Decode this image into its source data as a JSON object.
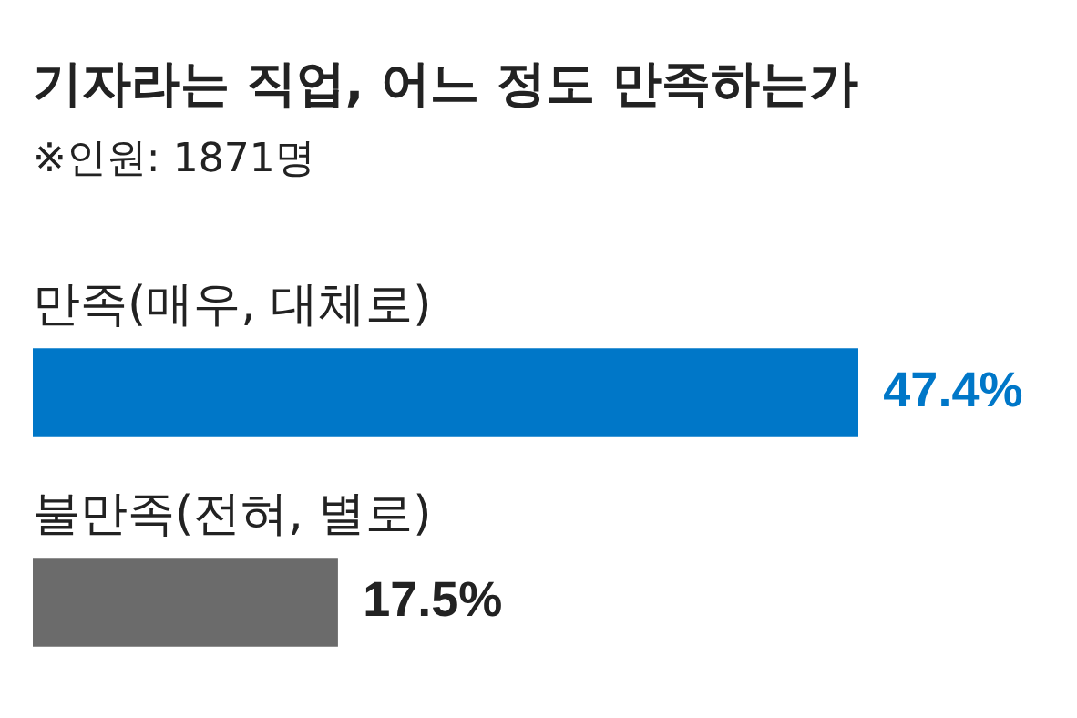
{
  "chart_data": {
    "type": "bar",
    "orientation": "horizontal",
    "title": "기자라는 직업, 어느 정도 만족하는가",
    "subtitle": "※인원: 1871명",
    "categories": [
      "만족(매우, 대체로)",
      "불만족(전혀, 별로)"
    ],
    "values": [
      47.4,
      17.5
    ],
    "colors": [
      "#0077c8",
      "#6b6b6b"
    ],
    "value_labels": [
      "47.4%",
      "17.5%"
    ],
    "xlim": [
      0,
      60
    ],
    "tick_labels": false,
    "legend": false
  }
}
